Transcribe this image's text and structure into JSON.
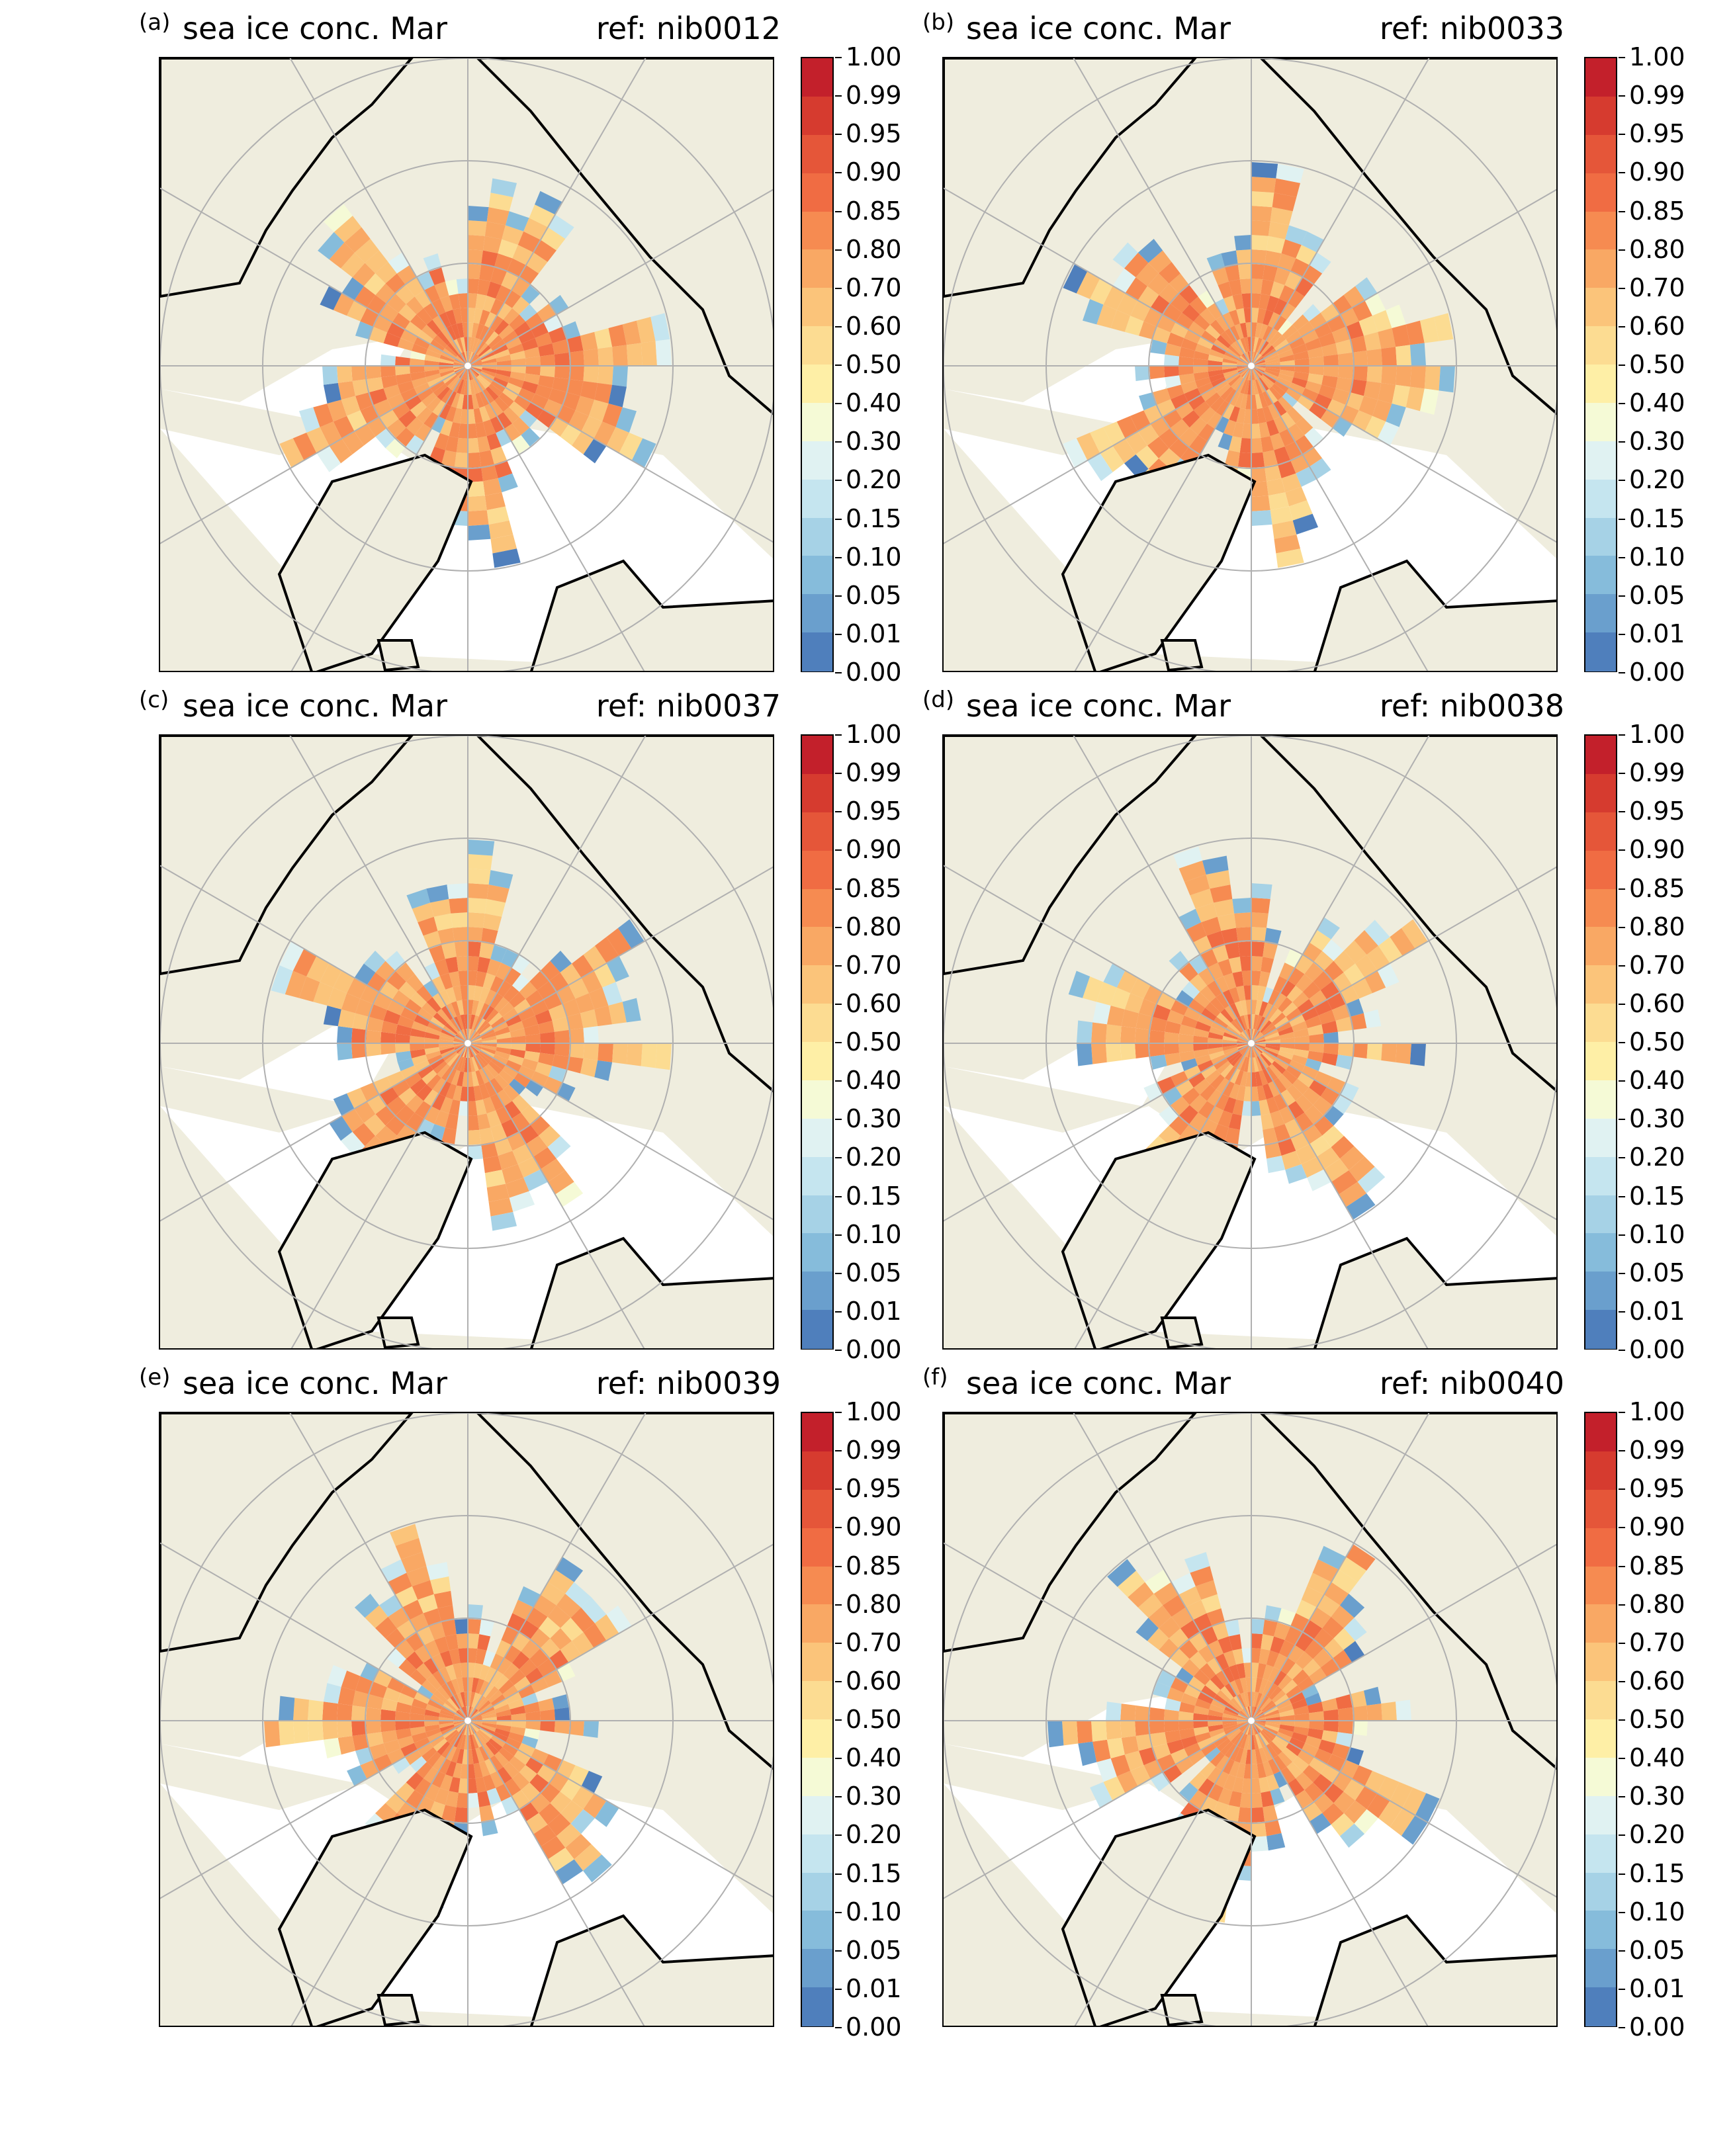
{
  "figure": {
    "panels": [
      {
        "letter": "(a)",
        "title": "sea ice conc. Mar",
        "ref": "ref: nib0012"
      },
      {
        "letter": "(b)",
        "title": "sea ice conc. Mar",
        "ref": "ref: nib0033"
      },
      {
        "letter": "(c)",
        "title": "sea ice conc. Mar",
        "ref": "ref: nib0037"
      },
      {
        "letter": "(d)",
        "title": "sea ice conc. Mar",
        "ref": "ref: nib0038"
      },
      {
        "letter": "(e)",
        "title": "sea ice conc. Mar",
        "ref": "ref: nib0039"
      },
      {
        "letter": "(f)",
        "title": "sea ice conc. Mar",
        "ref": "ref: nib0040"
      }
    ],
    "colorbar": {
      "ticks": [
        "1.00",
        "0.99",
        "0.95",
        "0.90",
        "0.85",
        "0.80",
        "0.70",
        "0.60",
        "0.50",
        "0.40",
        "0.30",
        "0.20",
        "0.15",
        "0.10",
        "0.05",
        "0.01",
        "0.00"
      ],
      "colors": [
        "#c3202b",
        "#d63b2f",
        "#e55639",
        "#f06c43",
        "#f68b51",
        "#f9a864",
        "#fbc47a",
        "#fcdc92",
        "#feefa6",
        "#f5fad6",
        "#e0f2f2",
        "#c5e5ef",
        "#a6d2e6",
        "#86bcdb",
        "#6a9fcd",
        "#4f7fbc",
        "#3a5aa8"
      ]
    },
    "colors": {
      "land": "#efedde",
      "ocean": "#ffffff",
      "coast": "#000000",
      "grid": "#b0b0b0"
    }
  }
}
